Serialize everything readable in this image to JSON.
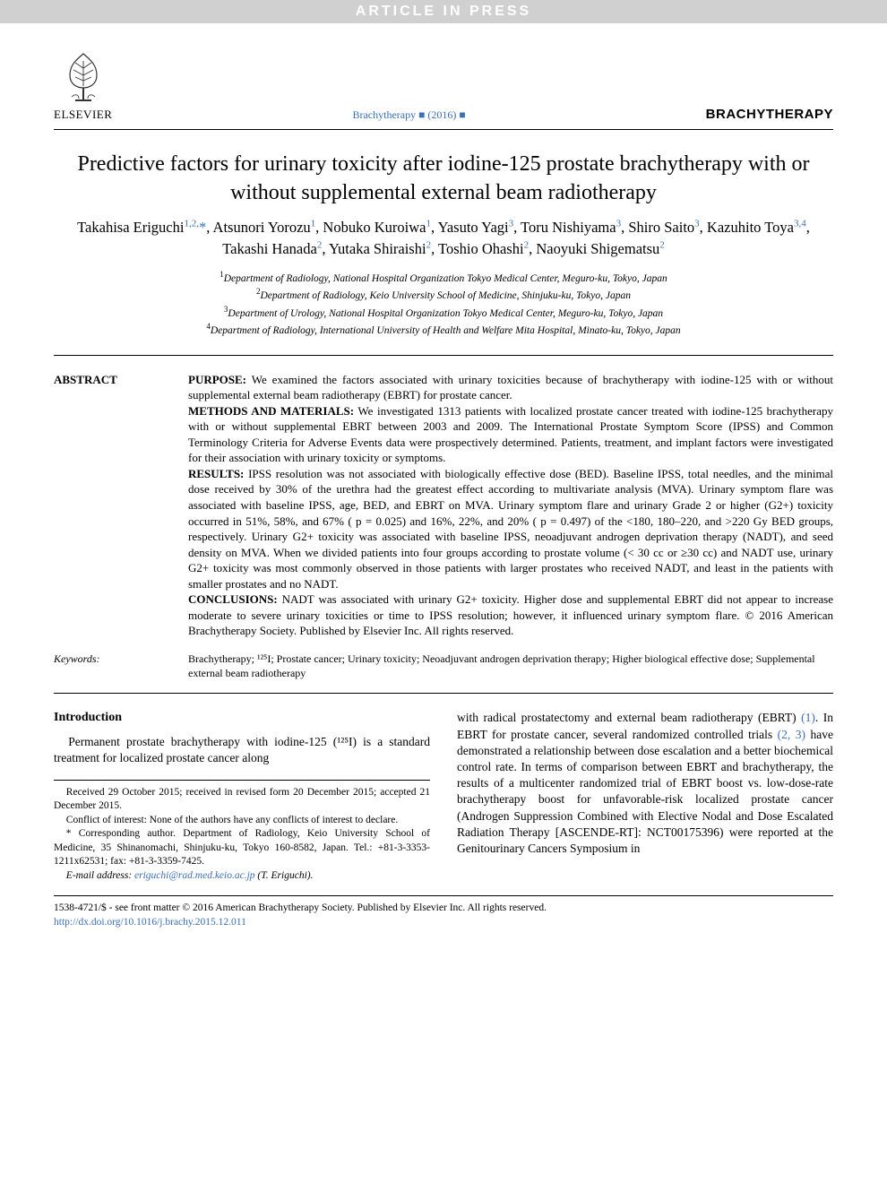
{
  "banner": "ARTICLE IN PRESS",
  "publisher": "ELSEVIER",
  "journal_cite": "Brachytherapy ■ (2016) ■",
  "journal_name": "BRACHYTHERAPY",
  "title": "Predictive factors for urinary toxicity after iodine-125 prostate brachytherapy with or without supplemental external beam radiotherapy",
  "authors_html": "Takahisa Eriguchi<sup>1,2,</sup><span class='star'>*</span>, Atsunori Yorozu<sup>1</sup>, Nobuko Kuroiwa<sup>1</sup>, Yasuto Yagi<sup>3</sup>, Toru Nishiyama<sup>3</sup>, Shiro Saito<sup>3</sup>, Kazuhito Toya<sup>3,4</sup>, Takashi Hanada<sup>2</sup>, Yutaka Shiraishi<sup>2</sup>, Toshio Ohashi<sup>2</sup>, Naoyuki Shigematsu<sup>2</sup>",
  "affils": [
    "Department of Radiology, National Hospital Organization Tokyo Medical Center, Meguro-ku, Tokyo, Japan",
    "Department of Radiology, Keio University School of Medicine, Shinjuku-ku, Tokyo, Japan",
    "Department of Urology, National Hospital Organization Tokyo Medical Center, Meguro-ku, Tokyo, Japan",
    "Department of Radiology, International University of Health and Welfare Mita Hospital, Minato-ku, Tokyo, Japan"
  ],
  "abstract": {
    "label": "ABSTRACT",
    "purpose_label": "PURPOSE:",
    "purpose": " We examined the factors associated with urinary toxicities because of brachytherapy with iodine-125 with or without supplemental external beam radiotherapy (EBRT) for prostate cancer.",
    "methods_label": "METHODS AND MATERIALS:",
    "methods": " We investigated 1313 patients with localized prostate cancer treated with iodine-125 brachytherapy with or without supplemental EBRT between 2003 and 2009. The International Prostate Symptom Score (IPSS) and Common Terminology Criteria for Adverse Events data were prospectively determined. Patients, treatment, and implant factors were investigated for their association with urinary toxicity or symptoms.",
    "results_label": "RESULTS:",
    "results": " IPSS resolution was not associated with biologically effective dose (BED). Baseline IPSS, total needles, and the minimal dose received by 30% of the urethra had the greatest effect according to multivariate analysis (MVA). Urinary symptom flare was associated with baseline IPSS, age, BED, and EBRT on MVA. Urinary symptom flare and urinary Grade 2 or higher (G2+) toxicity occurred in 51%, 58%, and 67% ( p = 0.025) and 16%, 22%, and 20% ( p = 0.497) of the <180, 180–220, and >220 Gy BED groups, respectively. Urinary G2+ toxicity was associated with baseline IPSS, neoadjuvant androgen deprivation therapy (NADT), and seed density on MVA. When we divided patients into four groups according to prostate volume (< 30 cc or ≥30 cc) and NADT use, urinary G2+ toxicity was most commonly observed in those patients with larger prostates who received NADT, and least in the patients with smaller prostates and no NADT.",
    "conclusions_label": "CONCLUSIONS:",
    "conclusions": " NADT was associated with urinary G2+ toxicity. Higher dose and supplemental EBRT did not appear to increase moderate to severe urinary toxicities or time to IPSS resolution; however, it influenced urinary symptom flare. © 2016 American Brachytherapy Society. Published by Elsevier Inc. All rights reserved."
  },
  "keywords": {
    "label": "Keywords:",
    "text": "Brachytherapy; ¹²⁵I; Prostate cancer; Urinary toxicity; Neoadjuvant androgen deprivation therapy; Higher biological effective dose; Supplemental external beam radiotherapy"
  },
  "intro": {
    "heading": "Introduction",
    "col1": "Permanent prostate brachytherapy with iodine-125 (¹²⁵I) is a standard treatment for localized prostate cancer along",
    "col2_pre": "with radical prostatectomy and external beam radiotherapy (EBRT) ",
    "col2_cite1": "(1)",
    "col2_mid1": ". In EBRT for prostate cancer, several randomized controlled trials ",
    "col2_cite2": "(2, 3)",
    "col2_mid2": " have demonstrated a relationship between dose escalation and a better biochemical control rate. In terms of comparison between EBRT and brachytherapy, the results of a multicenter randomized trial of EBRT boost vs. low-dose-rate brachytherapy boost for unfavorable-risk localized prostate cancer (Androgen Suppression Combined with Elective Nodal and Dose Escalated Radiation Therapy [ASCENDE-RT]: NCT00175396) were reported at the Genitourinary Cancers Symposium in"
  },
  "footnotes": {
    "received": "Received 29 October 2015; received in revised form 20 December 2015; accepted 21 December 2015.",
    "coi": "Conflict of interest: None of the authors have any conflicts of interest to declare.",
    "corr": "* Corresponding author. Department of Radiology, Keio University School of Medicine, 35 Shinanomachi, Shinjuku-ku, Tokyo 160-8582, Japan. Tel.: +81-3-3353-1211x62531; fax: +81-3-3359-7425.",
    "email_label": "E-mail address: ",
    "email": "eriguchi@rad.med.keio.ac.jp",
    "email_suffix": " (T. Eriguchi)."
  },
  "bottom": {
    "copy": "1538-4721/$ - see front matter © 2016 American Brachytherapy Society. Published by Elsevier Inc. All rights reserved.",
    "doi": "http://dx.doi.org/10.1016/j.brachy.2015.12.011"
  },
  "colors": {
    "link": "#3b6fb6",
    "banner_bg": "#d0d0d0",
    "banner_fg": "#ffffff"
  }
}
